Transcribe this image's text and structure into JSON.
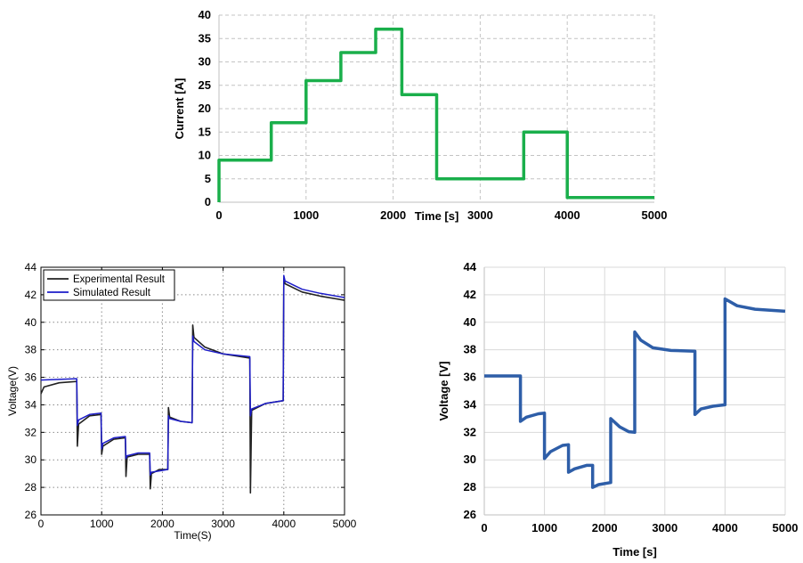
{
  "chart_data": [
    {
      "type": "line",
      "title": "",
      "xlabel": "Time [s]",
      "ylabel": "Current [A]",
      "xlim": [
        0,
        5000
      ],
      "ylim": [
        0,
        40
      ],
      "xticks": [
        0,
        1000,
        2000,
        3000,
        4000,
        5000
      ],
      "yticks": [
        0,
        5,
        10,
        15,
        20,
        25,
        30,
        35,
        40
      ],
      "grid": "dashed",
      "color": "#1aaf4b",
      "series": [
        {
          "x": [
            0,
            0,
            600,
            600,
            1000,
            1000,
            1400,
            1400,
            1800,
            1800,
            2100,
            2100,
            2500,
            2500,
            3500,
            3500,
            4000,
            4000,
            5000
          ],
          "y": [
            0,
            9,
            9,
            17,
            17,
            26,
            26,
            32,
            32,
            37,
            37,
            23,
            23,
            5,
            5,
            15,
            15,
            1,
            1
          ]
        }
      ]
    },
    {
      "type": "line",
      "title": "",
      "xlabel": "Time(S)",
      "ylabel": "Voltage(V)",
      "xlim": [
        0,
        5000
      ],
      "ylim": [
        26,
        44
      ],
      "xticks": [
        0,
        1000,
        2000,
        3000,
        4000,
        5000
      ],
      "yticks": [
        26,
        28,
        30,
        32,
        34,
        36,
        38,
        40,
        42,
        44
      ],
      "grid": "dotted",
      "legend": "top-left",
      "series": [
        {
          "name": "Experimental Result",
          "color": "#222222",
          "x": [
            0,
            50,
            300,
            590,
            600,
            620,
            800,
            990,
            1000,
            1020,
            1200,
            1390,
            1400,
            1420,
            1600,
            1790,
            1800,
            1820,
            1950,
            2090,
            2100,
            2120,
            2300,
            2490,
            2500,
            2520,
            2700,
            3000,
            3440,
            3450,
            3470,
            3700,
            3990,
            4000,
            4020,
            4300,
            4600,
            5000
          ],
          "y": [
            34.8,
            35.3,
            35.6,
            35.7,
            31.0,
            32.6,
            33.2,
            33.3,
            30.4,
            31.0,
            31.5,
            31.6,
            28.8,
            30.2,
            30.4,
            30.4,
            27.9,
            29.0,
            29.3,
            29.3,
            33.8,
            33.1,
            32.8,
            32.7,
            39.8,
            38.9,
            38.2,
            37.7,
            37.4,
            27.6,
            33.6,
            34.1,
            34.3,
            43.2,
            42.8,
            42.2,
            41.9,
            41.6
          ]
        },
        {
          "name": "Simulated Result",
          "color": "#1c1cc8",
          "x": [
            0,
            590,
            600,
            620,
            800,
            990,
            1000,
            1020,
            1200,
            1390,
            1400,
            1420,
            1600,
            1790,
            1800,
            1820,
            1950,
            2090,
            2100,
            2120,
            2300,
            2490,
            2500,
            2520,
            2700,
            3000,
            3440,
            3450,
            3470,
            3700,
            3990,
            4000,
            4020,
            4300,
            4600,
            5000
          ],
          "y": [
            35.8,
            35.9,
            32.5,
            32.9,
            33.3,
            33.4,
            30.8,
            31.2,
            31.6,
            31.7,
            30.1,
            30.3,
            30.5,
            30.5,
            28.9,
            29.1,
            29.2,
            29.3,
            33.2,
            33.0,
            32.8,
            32.7,
            39.0,
            38.6,
            38.0,
            37.7,
            37.5,
            33.2,
            33.7,
            34.1,
            34.3,
            43.4,
            43.0,
            42.4,
            42.1,
            41.8
          ]
        }
      ]
    },
    {
      "type": "line",
      "title": "",
      "xlabel": "Time [s]",
      "ylabel": "Voltage [V]",
      "xlim": [
        0,
        5000
      ],
      "ylim": [
        26,
        44
      ],
      "xticks": [
        0,
        1000,
        2000,
        3000,
        4000,
        5000
      ],
      "yticks": [
        26,
        28,
        30,
        32,
        34,
        36,
        38,
        40,
        42,
        44
      ],
      "grid": "solid",
      "color": "#2e5ea8",
      "series": [
        {
          "x": [
            0,
            600,
            600,
            700,
            900,
            1000,
            1000,
            1100,
            1300,
            1400,
            1400,
            1500,
            1700,
            1800,
            1800,
            1900,
            2100,
            2100,
            2250,
            2400,
            2500,
            2500,
            2600,
            2800,
            3100,
            3500,
            3500,
            3600,
            3800,
            4000,
            4000,
            4200,
            4500,
            5000
          ],
          "y": [
            36.1,
            36.1,
            32.8,
            33.1,
            33.35,
            33.4,
            30.1,
            30.6,
            31.05,
            31.1,
            29.1,
            29.35,
            29.6,
            29.6,
            28.0,
            28.2,
            28.35,
            33.0,
            32.4,
            32.05,
            32.0,
            39.3,
            38.7,
            38.15,
            37.95,
            37.9,
            33.3,
            33.7,
            33.9,
            34.0,
            41.7,
            41.2,
            40.95,
            40.8
          ]
        }
      ]
    }
  ]
}
